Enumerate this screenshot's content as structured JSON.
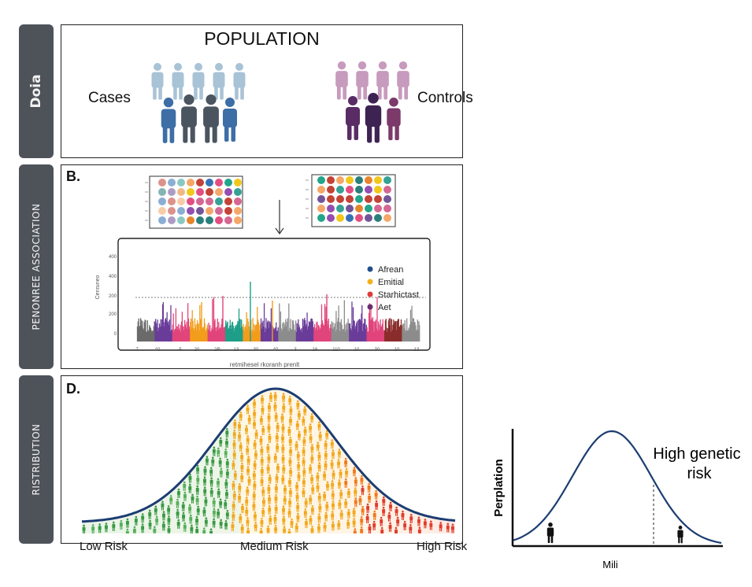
{
  "sections": {
    "a": {
      "tab": "Doia",
      "title": "POPULATION",
      "cases_label": "Cases",
      "controls_label": "Controls"
    },
    "b": {
      "tab": "PENONREE ASSOCIATION",
      "letter": "B.",
      "ylabel": "Cenruneo",
      "xlabel": "retmihesel rkoranh prenlt",
      "yticks": [
        "400",
        "400",
        "200",
        "200",
        "0"
      ],
      "xticks": [
        "7",
        "40",
        "-5",
        "20",
        "2R",
        "13",
        "30",
        "40",
        "3",
        "16",
        "110",
        "10",
        "30",
        "10",
        "13"
      ],
      "legend": [
        {
          "name": "Afrean",
          "color": "#1f4e8c"
        },
        {
          "name": "Emitial",
          "color": "#f2b21b"
        },
        {
          "name": "Starhictast",
          "color": "#e03a3a"
        },
        {
          "name": "Aet",
          "color": "#6a2c6e"
        }
      ]
    },
    "d": {
      "tab": "RISTRIBUTION",
      "letter": "D.",
      "low": "Low Risk",
      "medium": "Medium Risk",
      "high": "High Risk"
    },
    "inset": {
      "ylabel": "Perplation",
      "xlabel": "Mili",
      "annotation_line1": "High genetic",
      "annotation_line2": "risk"
    }
  },
  "colors": {
    "tab_bg": "#4e535a",
    "cases_light": "#a9c3d6",
    "cases_dark": "#3d6ea6",
    "cases_gray": "#4a5560",
    "controls_light": "#c79bbd",
    "controls_dark": "#5a2c66",
    "curve": "#1c3d72",
    "low_risk": "#3a9a45",
    "medium_risk": "#f2a81d",
    "high_risk": "#e03c2c"
  },
  "icons": [
    "person-icon",
    "arrow-down-icon"
  ]
}
